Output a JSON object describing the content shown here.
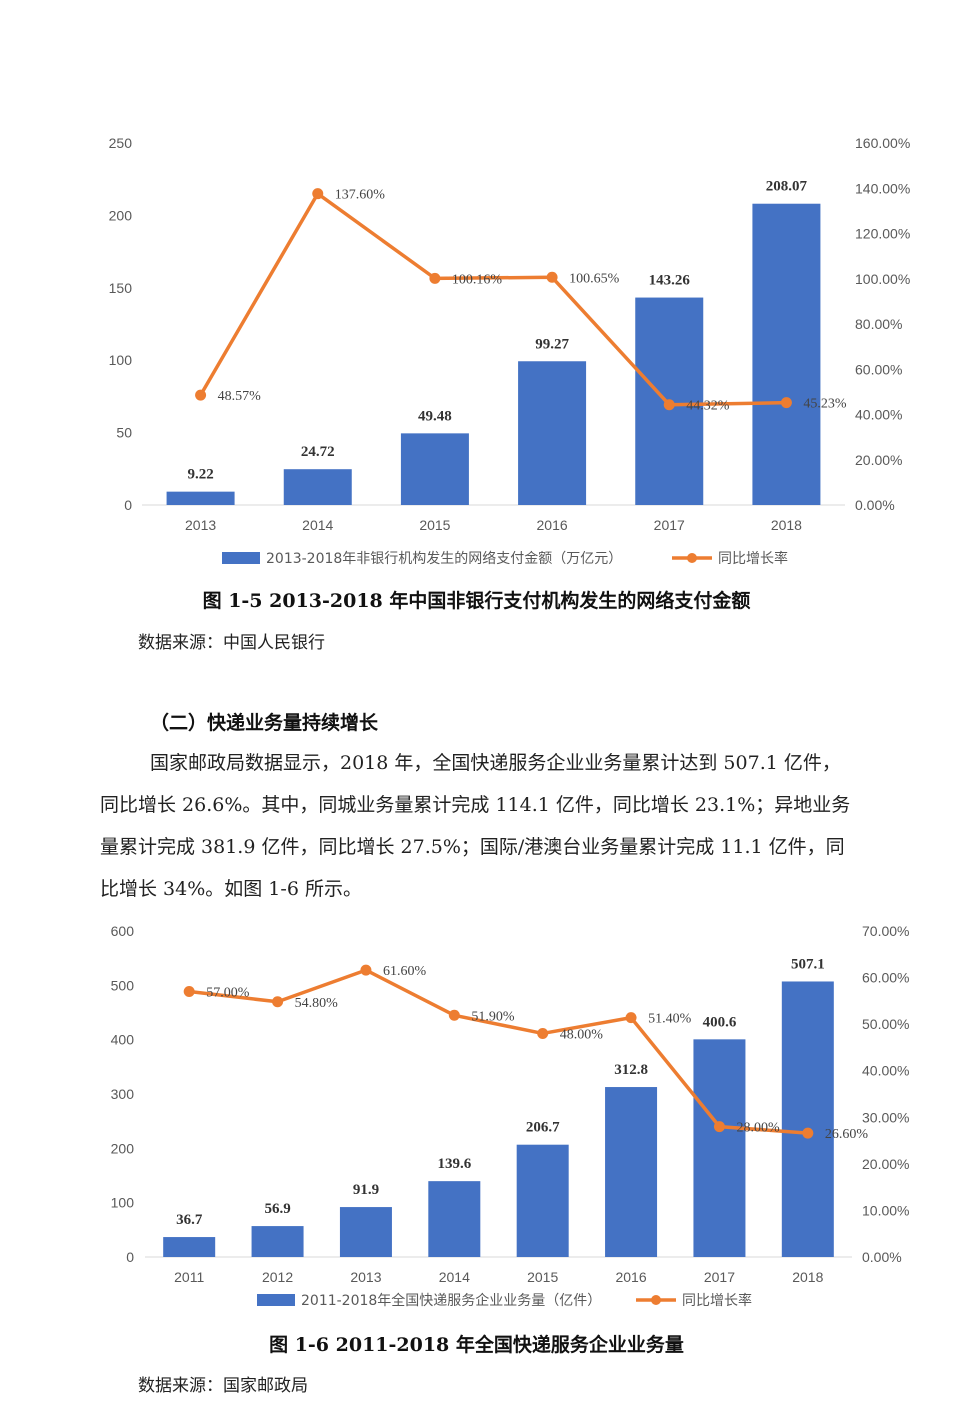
{
  "charts": [
    {
      "categories": [
        "2013",
        "2014",
        "2015",
        "2016",
        "2017",
        "2018"
      ],
      "bar_values": [
        9.22,
        24.72,
        49.48,
        99.27,
        143.26,
        208.07
      ],
      "bar_labels": [
        "9.22",
        "24.72",
        "49.48",
        "99.27",
        "143.26",
        "208.07"
      ],
      "rate_values": [
        48.57,
        137.6,
        100.16,
        100.65,
        44.32,
        45.23
      ],
      "rate_labels": [
        "48.57%",
        "137.60%",
        "100.16%",
        "100.65%",
        "44.32%",
        "45.23%"
      ],
      "left_ticks": [
        "0",
        "50",
        "100",
        "150",
        "200",
        "250"
      ],
      "right_ticks": [
        "0.00%",
        "20.00%",
        "40.00%",
        "60.00%",
        "80.00%",
        "100.00%",
        "120.00%",
        "140.00%",
        "160.00%"
      ],
      "legend_bar": "2013-2018年非银行机构发生的网络支付金额（万亿元）",
      "legend_line": "同比增长率"
    },
    {
      "categories": [
        "2011",
        "2012",
        "2013",
        "2014",
        "2015",
        "2016",
        "2017",
        "2018"
      ],
      "bar_values": [
        36.7,
        56.9,
        91.9,
        139.6,
        206.7,
        312.8,
        400.6,
        507.1
      ],
      "bar_labels": [
        "36.7",
        "56.9",
        "91.9",
        "139.6",
        "206.7",
        "312.8",
        "400.6",
        "507.1"
      ],
      "rate_values": [
        57.0,
        54.8,
        61.6,
        51.9,
        48.0,
        51.4,
        28.0,
        26.6
      ],
      "rate_labels": [
        "57.00%",
        "54.80%",
        "61.60%",
        "51.90%",
        "48.00%",
        "51.40%",
        "28.00%",
        "26.60%"
      ],
      "left_ticks": [
        "0",
        "100",
        "200",
        "300",
        "400",
        "500",
        "600"
      ],
      "right_ticks": [
        "0.00%",
        "10.00%",
        "20.00%",
        "30.00%",
        "40.00%",
        "50.00%",
        "60.00%",
        "70.00%"
      ],
      "legend_bar": "2011-2018年全国快递服务企业业务量（亿件）",
      "legend_line": "同比增长率"
    }
  ],
  "chart_data": [
    {
      "type": "bar",
      "categories": [
        "2013",
        "2014",
        "2015",
        "2016",
        "2017",
        "2018"
      ],
      "series": [
        {
          "name": "2013-2018年非银行机构发生的网络支付金额（万亿元）",
          "type": "bar",
          "axis": "left",
          "values": [
            9.22,
            24.72,
            49.48,
            99.27,
            143.26,
            208.07
          ]
        },
        {
          "name": "同比增长率",
          "type": "line",
          "axis": "right",
          "values": [
            48.57,
            137.6,
            100.16,
            100.65,
            44.32,
            45.23
          ]
        }
      ],
      "ylim": [
        0,
        250
      ],
      "y2lim": [
        0,
        160
      ],
      "legend": "bottom",
      "grid": false
    },
    {
      "type": "bar",
      "categories": [
        "2011",
        "2012",
        "2013",
        "2014",
        "2015",
        "2016",
        "2017",
        "2018"
      ],
      "series": [
        {
          "name": "2011-2018年全国快递服务企业业务量（亿件）",
          "type": "bar",
          "axis": "left",
          "values": [
            36.7,
            56.9,
            91.9,
            139.6,
            206.7,
            312.8,
            400.6,
            507.1
          ]
        },
        {
          "name": "同比增长率",
          "type": "line",
          "axis": "right",
          "values": [
            57.0,
            54.8,
            61.6,
            51.9,
            48.0,
            51.4,
            28.0,
            26.6
          ]
        }
      ],
      "ylim": [
        0,
        600
      ],
      "y2lim": [
        0,
        70
      ],
      "legend": "bottom",
      "grid": false
    }
  ],
  "colors": {
    "bar": "#4472c4",
    "line": "#ed7d31"
  },
  "figure1": {
    "caption": "图 1-5  2013-2018 年中国非银行支付机构发生的网络支付金额",
    "source": "数据来源：中国人民银行"
  },
  "section": {
    "heading": "（二）快递业务量持续增长",
    "lines": [
      "国家邮政局数据显示，2018 年，全国快递服务企业业务量累计达到 507.1 亿件，",
      "同比增长 26.6%。其中，同城业务量累计完成 114.1 亿件，同比增长 23.1%；异地业务",
      "量累计完成 381.9 亿件，同比增长 27.5%；国际/港澳台业务量累计完成 11.1 亿件，同",
      "比增长 34%。如图 1-6 所示。"
    ]
  },
  "figure2": {
    "caption": "图 1-6  2011-2018 年全国快递服务企业业务量",
    "source": "数据来源：国家邮政局"
  }
}
